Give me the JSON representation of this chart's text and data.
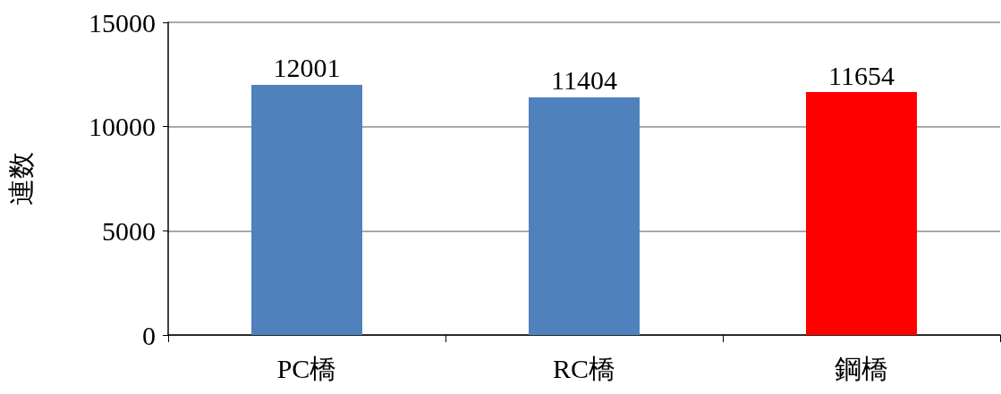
{
  "chart_data": {
    "type": "bar",
    "ylabel": "連数",
    "categories": [
      "PC橋",
      "RC橋",
      "鋼橋"
    ],
    "values": [
      12001,
      11404,
      11654
    ],
    "colors": [
      "#4f81bd",
      "#4f81bd",
      "#ff0000"
    ],
    "ylim": [
      0,
      15000
    ],
    "yticks": [
      0,
      5000,
      10000,
      15000
    ],
    "grid": "y",
    "data_labels": true
  }
}
